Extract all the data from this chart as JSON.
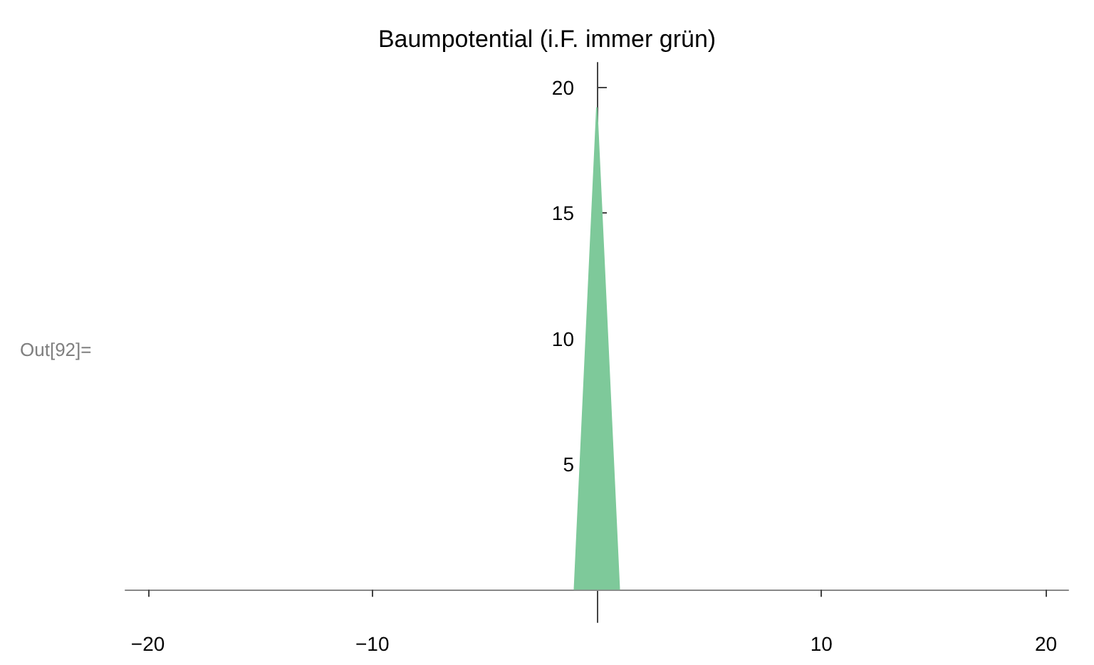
{
  "chart_data": {
    "type": "area",
    "title": "Baumpotential (i.F. immer grün)",
    "x": [
      -1,
      0,
      1
    ],
    "series": [
      {
        "color": "#7ec99a",
        "values": [
          0,
          19.2,
          0
        ]
      }
    ],
    "xlim": [
      -21,
      21
    ],
    "xticks": [
      -20,
      -10,
      10,
      20
    ],
    "ylim": [
      -1.3,
      21
    ],
    "yticks": [
      5,
      10,
      15,
      20
    ],
    "grid": false,
    "marker": "none",
    "annotations": [
      "Out[92]="
    ]
  }
}
